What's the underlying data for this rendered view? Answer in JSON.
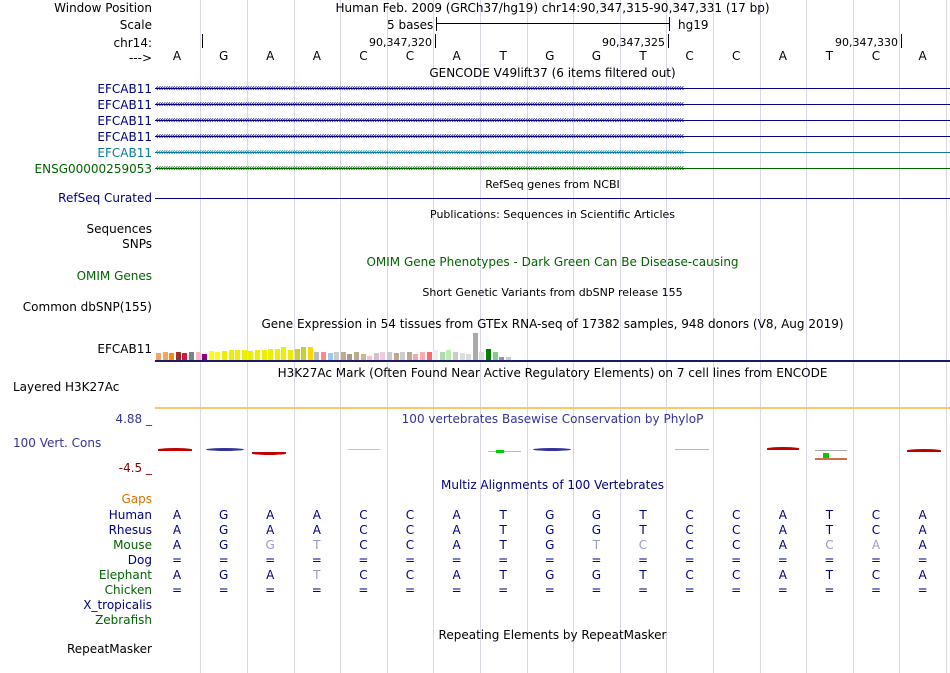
{
  "header": {
    "window_position_label": "Window Position",
    "assembly_text": "Human Feb. 2009 (GRCh37/hg19)   chr14:90,347,315-90,347,331 (17 bp)",
    "scale_label": "Scale",
    "scale_text": "5 bases",
    "scale_db": "hg19",
    "chrom_label": "chr14:",
    "strand_label": "--->",
    "positions": [
      "90,347,320",
      "90,347,325",
      "90,347,330"
    ]
  },
  "bases": [
    "A",
    "G",
    "A",
    "A",
    "C",
    "C",
    "A",
    "T",
    "G",
    "G",
    "T",
    "C",
    "C",
    "A",
    "T",
    "C",
    "A"
  ],
  "gencode": {
    "title": "GENCODE V49lift37 (6 items filtered out)",
    "genes": [
      {
        "name": "EFCAB11",
        "color": "#000080"
      },
      {
        "name": "EFCAB11",
        "color": "#000080"
      },
      {
        "name": "EFCAB11",
        "color": "#000080"
      },
      {
        "name": "EFCAB11",
        "color": "#000080"
      },
      {
        "name": "EFCAB11",
        "color": "#0c7c9c"
      },
      {
        "name": "ENSG00000259053",
        "color": "#006400"
      }
    ]
  },
  "refseq": {
    "title": "RefSeq genes from NCBI",
    "label": "RefSeq Curated"
  },
  "publications": {
    "title": "Publications: Sequences in Scientific Articles",
    "label1": "Sequences",
    "label2": "SNPs"
  },
  "omim": {
    "title": "OMIM Gene Phenotypes - Dark Green Can Be Disease-causing",
    "label": "OMIM Genes"
  },
  "dbsnp": {
    "title": "Short Genetic Variants from dbSNP release 155",
    "label": "Common dbSNP(155)"
  },
  "gtex": {
    "title": "Gene Expression in 54 tissues from GTEx RNA-seq of 17382 samples, 948 donors (V8, Aug 2019)",
    "label": "EFCAB11",
    "levels": [
      0.25,
      0.3,
      0.25,
      0.3,
      0.25,
      0.3,
      0.28,
      0.2,
      0.32,
      0.3,
      0.32,
      0.35,
      0.35,
      0.35,
      0.32,
      0.35,
      0.35,
      0.38,
      0.4,
      0.45,
      0.35,
      0.38,
      0.45,
      0.45,
      0.3,
      0.28,
      0.25,
      0.3,
      0.28,
      0.2,
      0.3,
      0.2,
      0.15,
      0.25,
      0.3,
      0.3,
      0.25,
      0.3,
      0.3,
      0.2,
      0.3,
      0.28,
      0.35,
      0.3,
      0.35,
      0.3,
      0.25,
      0.2,
      0.95,
      0.3,
      0.38,
      0.3,
      0.1,
      0.1
    ],
    "colors": [
      "#f4a460",
      "#f4a460",
      "#ff8c00",
      "#a52a2a",
      "#dc143c",
      "#808080",
      "#ffb6c1",
      "#8b008b",
      "#ffff00",
      "#ffff00",
      "#eeee00",
      "#eeee00",
      "#eeee00",
      "#eeee00",
      "#eeee00",
      "#eeee00",
      "#eeee00",
      "#eeee00",
      "#eeee00",
      "#eeee00",
      "#eeee00",
      "#cccc33",
      "#cccc33",
      "#ffd700",
      "#bbbbbb",
      "#ff8888",
      "#99ccee",
      "#cccccc",
      "#bfa98a",
      "#aa9988",
      "#bfa98a",
      "#d2b48c",
      "#ffc0cb",
      "#ddbbcc",
      "#eeccdd",
      "#cccccc",
      "#bfa98a",
      "#cccccc",
      "#bfa98a",
      "#eeaaaa",
      "#ffaaaa",
      "#ff6666",
      "#eeeeee",
      "#aaddaa",
      "#bbeeaa",
      "#cccccc",
      "#dddddd",
      "#dddddd",
      "#aaaaaa",
      "#dddddd",
      "#008000",
      "#88cc88",
      "#9988cc",
      "#cccccc"
    ]
  },
  "h3k27ac": {
    "title": "H3K27Ac Mark (Often Found Near Active Regulatory Elements) on 7 cell lines from ENCODE",
    "label": "Layered H3K27Ac"
  },
  "phylop": {
    "title": "100 vertebrates Basewise Conservation by PhyloP",
    "label": "100 Vert. Cons",
    "ymax": "4.88 _",
    "ymin": "-4.5 _"
  },
  "multiz": {
    "title": "Multiz Alignments of 100 Vertebrates",
    "gaps_label": "Gaps",
    "species": [
      {
        "name": "Human",
        "color": "#000080",
        "seq": [
          "A",
          "G",
          "A",
          "A",
          "C",
          "C",
          "A",
          "T",
          "G",
          "G",
          "T",
          "C",
          "C",
          "A",
          "T",
          "C",
          "A"
        ]
      },
      {
        "name": "Rhesus",
        "color": "#000080",
        "seq": [
          "A",
          "G",
          "A",
          "A",
          "C",
          "C",
          "A",
          "T",
          "G",
          "G",
          "T",
          "C",
          "C",
          "A",
          "T",
          "C",
          "A"
        ]
      },
      {
        "name": "Mouse",
        "color": "#006400",
        "seq": [
          "A",
          "G",
          "G",
          "T",
          "C",
          "C",
          "A",
          "T",
          "G",
          "T",
          "C",
          "C",
          "C",
          "A",
          "C",
          "A",
          "A"
        ]
      },
      {
        "name": "Dog",
        "color": "#000080",
        "seq": [
          "=",
          "=",
          "=",
          "=",
          "=",
          "=",
          "=",
          "=",
          "=",
          "=",
          "=",
          "=",
          "=",
          "=",
          "=",
          "=",
          "="
        ]
      },
      {
        "name": "Elephant",
        "color": "#006400",
        "seq": [
          "A",
          "G",
          "A",
          "T",
          "C",
          "C",
          "A",
          "T",
          "G",
          "G",
          "T",
          "C",
          "C",
          "A",
          "T",
          "C",
          "A"
        ]
      },
      {
        "name": "Chicken",
        "color": "#006400",
        "seq": [
          "=",
          "=",
          "=",
          "=",
          "=",
          "=",
          "=",
          "=",
          "=",
          "=",
          "=",
          "=",
          "=",
          "=",
          "=",
          "=",
          "="
        ]
      },
      {
        "name": "X_tropicalis",
        "color": "#000080",
        "seq": []
      },
      {
        "name": "Zebrafish",
        "color": "#006400",
        "seq": []
      }
    ],
    "mismatch": [
      [
        0,
        0,
        0,
        0,
        0,
        0,
        0,
        0,
        0,
        0,
        0,
        0,
        0,
        0,
        0,
        0,
        0
      ],
      [
        0,
        0,
        0,
        0,
        0,
        0,
        0,
        0,
        0,
        0,
        0,
        0,
        0,
        0,
        0,
        0,
        0
      ],
      [
        0,
        0,
        1,
        1,
        0,
        0,
        0,
        0,
        0,
        1,
        1,
        0,
        0,
        0,
        1,
        1,
        0
      ],
      [
        0,
        0,
        0,
        0,
        0,
        0,
        0,
        0,
        0,
        0,
        0,
        0,
        0,
        0,
        0,
        0,
        0
      ],
      [
        0,
        0,
        0,
        1,
        0,
        0,
        0,
        0,
        0,
        0,
        0,
        0,
        0,
        0,
        0,
        0,
        0
      ],
      [
        0,
        0,
        0,
        0,
        0,
        0,
        0,
        0,
        0,
        0,
        0,
        0,
        0,
        0,
        0,
        0,
        0
      ],
      [],
      []
    ]
  },
  "repeatmasker": {
    "title": "Repeating Elements by RepeatMasker",
    "label": "RepeatMasker"
  },
  "colors": {
    "navy": "#000080",
    "green": "#006400",
    "purple_title": "#333399",
    "gaps": "#e07000",
    "label_blue": "#000080"
  }
}
